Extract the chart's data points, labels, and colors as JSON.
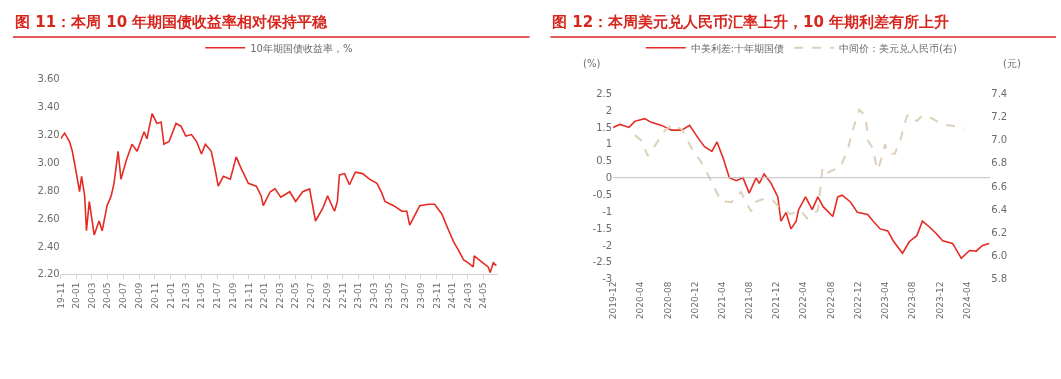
{
  "chart_data": [
    {
      "type": "line",
      "title": "图 11：本周 10 年期国债收益率相对保持平稳",
      "legend": "top",
      "grid": false,
      "xlim": [
        "2019-11-01",
        "2024-06-25"
      ],
      "xticks": [
        {
          "value": "2019-11",
          "label": "19-11"
        },
        {
          "value": "2020-01",
          "label": "20-01"
        },
        {
          "value": "2020-03",
          "label": "20-03"
        },
        {
          "value": "2020-05",
          "label": "20-05"
        },
        {
          "value": "2020-07",
          "label": "20-07"
        },
        {
          "value": "2020-09",
          "label": "20-09"
        },
        {
          "value": "2020-11",
          "label": "20-11"
        },
        {
          "value": "2021-01",
          "label": "21-01"
        },
        {
          "value": "2021-03",
          "label": "21-03"
        },
        {
          "value": "2021-05",
          "label": "21-05"
        },
        {
          "value": "2021-07",
          "label": "21-07"
        },
        {
          "value": "2021-09",
          "label": "21-09"
        },
        {
          "value": "2021-11",
          "label": "21-11"
        },
        {
          "value": "2022-01",
          "label": "22-01"
        },
        {
          "value": "2022-03",
          "label": "22-03"
        },
        {
          "value": "2022-05",
          "label": "22-05"
        },
        {
          "value": "2022-07",
          "label": "22-07"
        },
        {
          "value": "2022-09",
          "label": "22-09"
        },
        {
          "value": "2022-11",
          "label": "22-11"
        },
        {
          "value": "2023-01",
          "label": "23-01"
        },
        {
          "value": "2023-03",
          "label": "23-03"
        },
        {
          "value": "2023-05",
          "label": "23-05"
        },
        {
          "value": "2023-07",
          "label": "23-07"
        },
        {
          "value": "2023-09",
          "label": "23-09"
        },
        {
          "value": "2023-11",
          "label": "23-11"
        },
        {
          "value": "2024-01",
          "label": "24-01"
        },
        {
          "value": "2024-03",
          "label": "24-03"
        },
        {
          "value": "2024-05",
          "label": "24-05"
        }
      ],
      "ylim": [
        2.2,
        3.6
      ],
      "yticks": [
        {
          "value": 2.2,
          "label": "2.20"
        },
        {
          "value": 2.4,
          "label": "2.40"
        },
        {
          "value": 2.6,
          "label": "2.60"
        },
        {
          "value": 2.8,
          "label": "2.80"
        },
        {
          "value": 3.0,
          "label": "3.00"
        },
        {
          "value": 3.2,
          "label": "3.20"
        },
        {
          "value": 3.4,
          "label": "3.40"
        },
        {
          "value": 3.6,
          "label": "3.60"
        }
      ],
      "series": [
        {
          "name": "10年期国债收益率，%",
          "color": "#e52b24",
          "x": [
            "2019-11-01",
            "2019-11-16",
            "2019-12-05",
            "2019-12-16",
            "2020-01-01",
            "2020-01-13",
            "2020-01-21",
            "2020-02-02",
            "2020-02-09",
            "2020-02-20",
            "2020-03-10",
            "2020-03-29",
            "2020-04-10",
            "2020-04-29",
            "2020-05-15",
            "2020-05-26",
            "2020-06-11",
            "2020-06-22",
            "2020-07-12",
            "2020-08-04",
            "2020-08-24",
            "2020-09-20",
            "2020-10-01",
            "2020-10-21",
            "2020-11-09",
            "2020-11-25",
            "2020-12-06",
            "2020-12-26",
            "2021-01-22",
            "2021-02-10",
            "2021-03-01",
            "2021-03-23",
            "2021-04-12",
            "2021-05-01",
            "2021-05-16",
            "2021-06-08",
            "2021-06-24",
            "2021-07-05",
            "2021-07-25",
            "2021-08-21",
            "2021-09-13",
            "2021-09-29",
            "2021-10-30",
            "2021-11-30",
            "2021-12-19",
            "2021-12-27",
            "2022-01-23",
            "2022-02-11",
            "2022-03-05",
            "2022-04-09",
            "2022-05-02",
            "2022-05-29",
            "2022-06-25",
            "2022-07-18",
            "2022-08-15",
            "2022-09-03",
            "2022-09-30",
            "2022-10-11",
            "2022-10-19",
            "2022-11-08",
            "2022-11-27",
            "2022-12-20",
            "2023-01-17",
            "2023-02-13",
            "2023-03-14",
            "2023-04-02",
            "2023-04-14",
            "2023-05-18",
            "2023-06-19",
            "2023-07-08",
            "2023-07-19",
            "2023-08-08",
            "2023-08-27",
            "2023-10-01",
            "2023-10-24",
            "2023-11-21",
            "2023-12-18",
            "2024-01-06",
            "2024-01-25",
            "2024-02-14",
            "2024-03-03",
            "2024-03-22",
            "2024-03-26",
            "2024-04-15",
            "2024-05-19",
            "2024-05-27",
            "2024-06-08",
            "2024-06-20"
          ],
          "values": [
            3.17,
            3.21,
            3.15,
            3.08,
            2.92,
            2.79,
            2.9,
            2.76,
            2.51,
            2.72,
            2.48,
            2.58,
            2.51,
            2.69,
            2.76,
            2.85,
            3.08,
            2.88,
            3.01,
            3.13,
            3.08,
            3.22,
            3.17,
            3.35,
            3.28,
            3.29,
            3.13,
            3.15,
            3.28,
            3.26,
            3.19,
            3.2,
            3.15,
            3.06,
            3.13,
            3.08,
            2.94,
            2.83,
            2.9,
            2.88,
            3.04,
            2.97,
            2.85,
            2.83,
            2.76,
            2.69,
            2.79,
            2.81,
            2.75,
            2.79,
            2.72,
            2.79,
            2.81,
            2.58,
            2.67,
            2.76,
            2.65,
            2.72,
            2.91,
            2.92,
            2.84,
            2.93,
            2.92,
            2.88,
            2.85,
            2.78,
            2.72,
            2.69,
            2.65,
            2.65,
            2.55,
            2.62,
            2.69,
            2.7,
            2.7,
            2.63,
            2.51,
            2.43,
            2.37,
            2.3,
            2.28,
            2.25,
            2.33,
            2.3,
            2.25,
            2.21,
            2.28,
            2.26
          ]
        }
      ]
    },
    {
      "type": "line",
      "title": "图 12：本周美元兑人民币汇率上升，10 年期利差有所上升",
      "legend": "top",
      "grid": false,
      "ylabel": "(%)",
      "y2label": "(元)",
      "xlim": [
        "2019-12-01",
        "2024-07-15"
      ],
      "xticks": [
        {
          "value": "2019-12",
          "label": "2019-12"
        },
        {
          "value": "2020-04",
          "label": "2020-04"
        },
        {
          "value": "2020-08",
          "label": "2020-08"
        },
        {
          "value": "2020-12",
          "label": "2020-12"
        },
        {
          "value": "2021-04",
          "label": "2021-04"
        },
        {
          "value": "2021-08",
          "label": "2021-08"
        },
        {
          "value": "2021-12",
          "label": "2021-12"
        },
        {
          "value": "2022-04",
          "label": "2022-04"
        },
        {
          "value": "2022-08",
          "label": "2022-08"
        },
        {
          "value": "2022-12",
          "label": "2022-12"
        },
        {
          "value": "2023-04",
          "label": "2023-04"
        },
        {
          "value": "2023-08",
          "label": "2023-08"
        },
        {
          "value": "2023-12",
          "label": "2023-12"
        },
        {
          "value": "2024-04",
          "label": "2024-04"
        }
      ],
      "ref_lines": [
        {
          "axis": "y",
          "value": 0,
          "color": "#bfbfbf"
        }
      ],
      "ylim": [
        -3,
        2.5
      ],
      "yticks": [
        -3,
        -2.5,
        -2,
        -1.5,
        -1,
        -0.5,
        0,
        0.5,
        1,
        1.5,
        2,
        2.5
      ],
      "y2lim": [
        5.8,
        7.4
      ],
      "y2ticks": [
        {
          "value": 5.8,
          "label": "5.8"
        },
        {
          "value": 6.0,
          "label": "6.0"
        },
        {
          "value": 6.2,
          "label": "6.2"
        },
        {
          "value": 6.4,
          "label": "6.4"
        },
        {
          "value": 6.6,
          "label": "6.6"
        },
        {
          "value": 6.8,
          "label": "6.8"
        },
        {
          "value": 7.0,
          "label": "7.0"
        },
        {
          "value": 7.2,
          "label": "7.2"
        },
        {
          "value": 7.4,
          "label": "7.4"
        }
      ],
      "series": [
        {
          "name": "中美利差:十年期国债",
          "color": "#e52b24",
          "line_style": "solid",
          "x": [
            "2019-12-01",
            "2020-01-01",
            "2020-02-10",
            "2020-03-07",
            "2020-04-20",
            "2020-05-20",
            "2020-07-05",
            "2020-08-18",
            "2020-10-03",
            "2020-11-07",
            "2020-12-18",
            "2021-01-13",
            "2021-02-15",
            "2021-03-10",
            "2021-04-07",
            "2021-05-04",
            "2021-06-04",
            "2021-07-04",
            "2021-08-01",
            "2021-09-01",
            "2021-09-15",
            "2021-10-07",
            "2021-11-07",
            "2021-12-07",
            "2021-12-21",
            "2022-01-13",
            "2022-02-04",
            "2022-02-27",
            "2022-03-10",
            "2022-04-10",
            "2022-05-10",
            "2022-06-04",
            "2022-06-28",
            "2022-08-10",
            "2022-09-01",
            "2022-09-21",
            "2022-10-28",
            "2022-11-28",
            "2023-01-13",
            "2023-02-07",
            "2023-03-10",
            "2023-04-13",
            "2023-05-07",
            "2023-06-18",
            "2023-07-18",
            "2023-08-21",
            "2023-09-15",
            "2023-10-18",
            "2023-11-18",
            "2023-12-15",
            "2024-01-28",
            "2024-03-07",
            "2024-04-13",
            "2024-05-13",
            "2024-06-10",
            "2024-07-10"
          ],
          "values": [
            1.49,
            1.58,
            1.49,
            1.67,
            1.75,
            1.64,
            1.55,
            1.41,
            1.41,
            1.55,
            1.15,
            0.92,
            0.78,
            1.06,
            0.57,
            0.0,
            -0.09,
            0.0,
            -0.46,
            0.0,
            -0.17,
            0.11,
            -0.17,
            -0.57,
            -1.29,
            -1.03,
            -1.52,
            -1.29,
            -0.95,
            -0.57,
            -0.95,
            -0.57,
            -0.86,
            -1.15,
            -0.57,
            -0.52,
            -0.72,
            -1.03,
            -1.09,
            -1.29,
            -1.52,
            -1.58,
            -1.87,
            -2.24,
            -1.9,
            -1.72,
            -1.29,
            -1.47,
            -1.67,
            -1.87,
            -1.95,
            -2.39,
            -2.16,
            -2.18,
            -2.01,
            -1.95
          ]
        },
        {
          "name": "中间价：美元兑人民币(右)",
          "color": "#ddd0b8",
          "axis": "y2",
          "line_style": "dashed",
          "x": [
            "2020-03-07",
            "2020-04-07",
            "2020-05-04",
            "2020-06-13",
            "2020-07-05",
            "2020-08-18",
            "2020-10-03",
            "2020-11-15",
            "2021-01-01",
            "2021-02-15",
            "2021-03-28",
            "2021-05-13",
            "2021-06-25",
            "2021-07-18",
            "2021-08-10",
            "2021-08-21",
            "2021-10-07",
            "2021-11-18",
            "2021-12-21",
            "2022-02-04",
            "2022-03-18",
            "2022-04-18",
            "2022-06-04",
            "2022-06-15",
            "2022-06-25",
            "2022-07-15",
            "2022-08-12",
            "2022-09-12",
            "2022-10-15",
            "2022-11-10",
            "2022-12-07",
            "2023-01-04",
            "2023-01-15",
            "2023-02-04",
            "2023-02-25",
            "2023-03-10",
            "2023-04-01",
            "2023-04-13",
            "2023-05-15",
            "2023-06-07",
            "2023-07-07",
            "2023-07-18",
            "2023-08-21",
            "2023-09-15",
            "2023-11-01",
            "2023-12-15",
            "2024-01-28",
            "2024-03-21"
          ],
          "values": [
            7.04,
            6.99,
            6.86,
            6.97,
            7.05,
            7.13,
            7.09,
            6.93,
            6.8,
            6.63,
            6.47,
            6.46,
            6.55,
            6.46,
            6.38,
            6.46,
            6.49,
            6.47,
            6.4,
            6.36,
            6.39,
            6.32,
            6.39,
            6.57,
            6.76,
            6.71,
            6.74,
            6.76,
            6.91,
            7.1,
            7.26,
            7.2,
            6.99,
            6.93,
            6.74,
            6.8,
            6.96,
            6.88,
            6.88,
            6.99,
            7.2,
            7.22,
            7.16,
            7.21,
            7.18,
            7.13,
            7.12,
            7.1
          ]
        }
      ]
    }
  ]
}
